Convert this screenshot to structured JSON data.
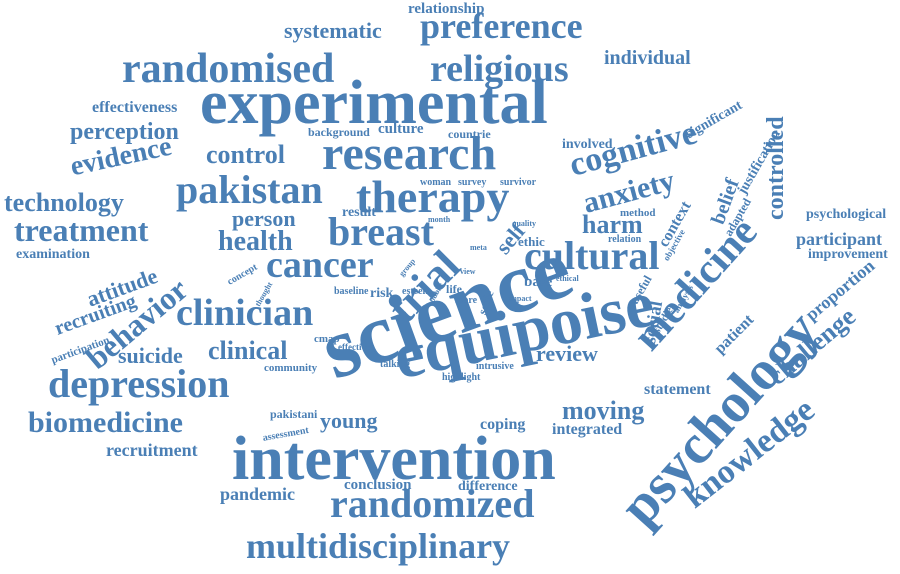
{
  "color": "#4a7fb5",
  "words": [
    {
      "text": "experimental",
      "rot": 0
    },
    {
      "text": "science",
      "rot": -20
    },
    {
      "text": "equipoise",
      "rot": -12
    },
    {
      "text": "intervention",
      "rot": 0
    },
    {
      "text": "psychology",
      "rot": -48
    },
    {
      "text": "research",
      "rot": 0
    },
    {
      "text": "therapy",
      "rot": 0
    },
    {
      "text": "randomised",
      "rot": 0
    },
    {
      "text": "religious",
      "rot": 0
    },
    {
      "text": "preference",
      "rot": 0
    },
    {
      "text": "pakistan",
      "rot": 0
    },
    {
      "text": "cancer",
      "rot": 0
    },
    {
      "text": "clinician",
      "rot": 0
    },
    {
      "text": "trial",
      "rot": -45
    },
    {
      "text": "breast",
      "rot": 0
    },
    {
      "text": "cultural",
      "rot": 0
    },
    {
      "text": "medicine",
      "rot": -48
    },
    {
      "text": "cognitive",
      "rot": -15
    },
    {
      "text": "depression",
      "rot": 0
    },
    {
      "text": "randomized",
      "rot": 0
    },
    {
      "text": "multidisciplinary",
      "rot": 0
    },
    {
      "text": "knowledge",
      "rot": -38
    },
    {
      "text": "anxiety",
      "rot": -15
    },
    {
      "text": "behavior",
      "rot": -40
    },
    {
      "text": "biomedicine",
      "rot": 0
    },
    {
      "text": "technology",
      "rot": 0
    },
    {
      "text": "treatment",
      "rot": 0
    },
    {
      "text": "evidence",
      "rot": -12
    },
    {
      "text": "perception",
      "rot": 0
    },
    {
      "text": "control",
      "rot": 0
    },
    {
      "text": "health",
      "rot": 0
    },
    {
      "text": "clinical",
      "rot": 0
    },
    {
      "text": "systematic",
      "rot": 0
    },
    {
      "text": "individual",
      "rot": 0
    },
    {
      "text": "effectiveness",
      "rot": 0
    },
    {
      "text": "relationship",
      "rot": 0
    },
    {
      "text": "controlled",
      "rot": -90
    },
    {
      "text": "significant",
      "rot": -30
    },
    {
      "text": "justification",
      "rot": -60
    },
    {
      "text": "belief",
      "rot": -70
    },
    {
      "text": "harm",
      "rot": 0
    },
    {
      "text": "person",
      "rot": 0
    },
    {
      "text": "result",
      "rot": 0
    },
    {
      "text": "attitude",
      "rot": -20
    },
    {
      "text": "recruiting",
      "rot": -20
    },
    {
      "text": "examination",
      "rot": 0
    },
    {
      "text": "participation",
      "rot": -20
    },
    {
      "text": "suicide",
      "rot": 0
    },
    {
      "text": "moving",
      "rot": 0
    },
    {
      "text": "young",
      "rot": 0
    },
    {
      "text": "coping",
      "rot": 0
    },
    {
      "text": "integrated",
      "rot": 0
    },
    {
      "text": "recruitment",
      "rot": 0
    },
    {
      "text": "pandemic",
      "rot": 0
    },
    {
      "text": "conclusion",
      "rot": 0
    },
    {
      "text": "difference",
      "rot": 0
    },
    {
      "text": "review",
      "rot": 0
    },
    {
      "text": "statement",
      "rot": 0
    },
    {
      "text": "challenge",
      "rot": -40
    },
    {
      "text": "proportion",
      "rot": -40
    },
    {
      "text": "improvement",
      "rot": 0
    },
    {
      "text": "participant",
      "rot": 0
    },
    {
      "text": "psychological",
      "rot": 0
    },
    {
      "text": "patient",
      "rot": -45
    },
    {
      "text": "social",
      "rot": -80
    },
    {
      "text": "self",
      "rot": -50
    },
    {
      "text": "base",
      "rot": 0
    },
    {
      "text": "ethic",
      "rot": 0
    },
    {
      "text": "involved",
      "rot": 0
    },
    {
      "text": "culture",
      "rot": 0
    },
    {
      "text": "background",
      "rot": 0
    },
    {
      "text": "countrie",
      "rot": 0
    },
    {
      "text": "woman",
      "rot": 0
    },
    {
      "text": "survey",
      "rot": 0
    },
    {
      "text": "survivor",
      "rot": 0
    },
    {
      "text": "context",
      "rot": -60
    },
    {
      "text": "method",
      "rot": 0
    },
    {
      "text": "relation",
      "rot": 0
    },
    {
      "text": "adapted",
      "rot": -60
    },
    {
      "text": "useful",
      "rot": -60
    },
    {
      "text": "studies",
      "rot": -60
    },
    {
      "text": "analysis",
      "rot": -60
    },
    {
      "text": "risk",
      "rot": 0
    },
    {
      "text": "baseline",
      "rot": 0
    },
    {
      "text": "esteem",
      "rot": 0
    },
    {
      "text": "life",
      "rot": 0
    },
    {
      "text": "more",
      "rot": 0
    },
    {
      "text": "scale",
      "rot": -70
    },
    {
      "text": "talking",
      "rot": 0
    },
    {
      "text": "highlight",
      "rot": 0
    },
    {
      "text": "intrusive",
      "rot": 0
    },
    {
      "text": "community",
      "rot": 0
    },
    {
      "text": "cmap",
      "rot": 0
    },
    {
      "text": "effective",
      "rot": 0
    },
    {
      "text": "pakistani",
      "rot": 0
    },
    {
      "text": "assessment",
      "rot": -10
    },
    {
      "text": "concept",
      "rot": -30
    },
    {
      "text": "thought",
      "rot": -60
    },
    {
      "text": "group",
      "rot": -50
    },
    {
      "text": "ethical",
      "rot": 0
    },
    {
      "text": "impact",
      "rot": 0
    },
    {
      "text": "quality",
      "rot": 0
    },
    {
      "text": "view",
      "rot": 0
    },
    {
      "text": "meta",
      "rot": 0
    },
    {
      "text": "month",
      "rot": 0
    },
    {
      "text": "public",
      "rot": -60
    },
    {
      "text": "objective",
      "rot": -60
    }
  ]
}
